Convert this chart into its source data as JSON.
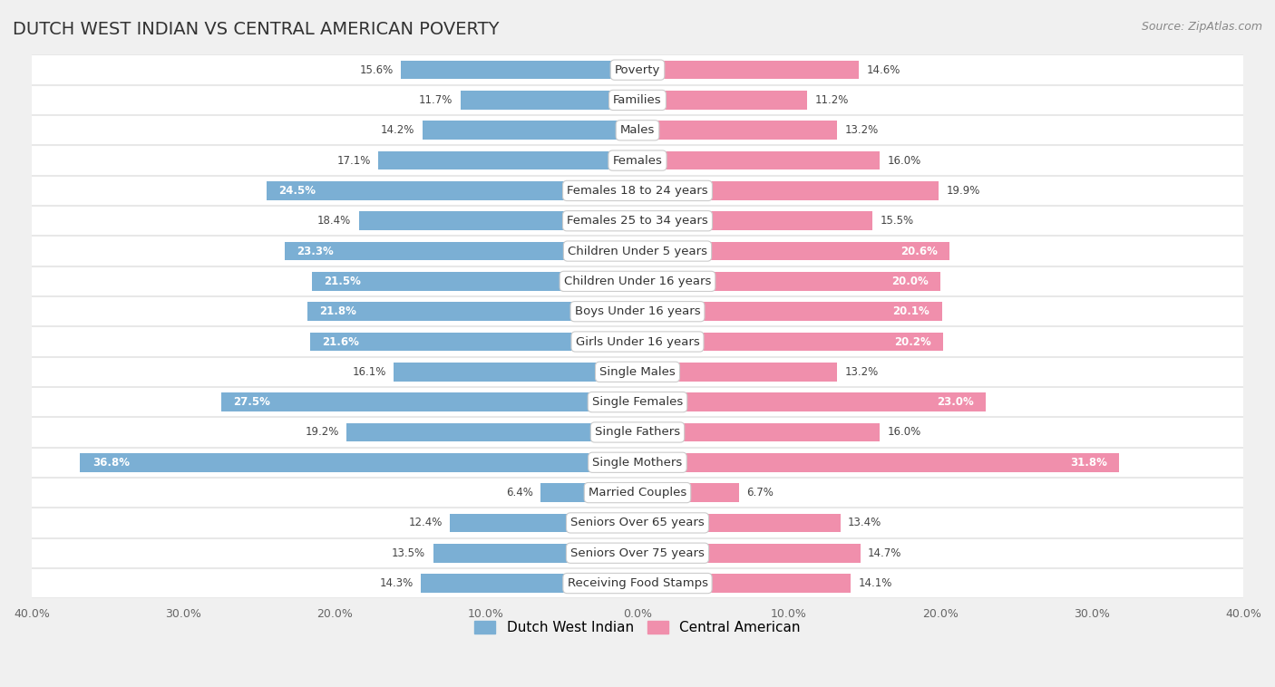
{
  "title": "DUTCH WEST INDIAN VS CENTRAL AMERICAN POVERTY",
  "source_text": "Source: ZipAtlas.com",
  "categories": [
    "Poverty",
    "Families",
    "Males",
    "Females",
    "Females 18 to 24 years",
    "Females 25 to 34 years",
    "Children Under 5 years",
    "Children Under 16 years",
    "Boys Under 16 years",
    "Girls Under 16 years",
    "Single Males",
    "Single Females",
    "Single Fathers",
    "Single Mothers",
    "Married Couples",
    "Seniors Over 65 years",
    "Seniors Over 75 years",
    "Receiving Food Stamps"
  ],
  "dutch_west_indian": [
    15.6,
    11.7,
    14.2,
    17.1,
    24.5,
    18.4,
    23.3,
    21.5,
    21.8,
    21.6,
    16.1,
    27.5,
    19.2,
    36.8,
    6.4,
    12.4,
    13.5,
    14.3
  ],
  "central_american": [
    14.6,
    11.2,
    13.2,
    16.0,
    19.9,
    15.5,
    20.6,
    20.0,
    20.1,
    20.2,
    13.2,
    23.0,
    16.0,
    31.8,
    6.7,
    13.4,
    14.7,
    14.1
  ],
  "dutch_color": "#7bafd4",
  "central_color": "#f08fac",
  "dutch_label": "Dutch West Indian",
  "central_label": "Central American",
  "xlim": 40.0,
  "background_color": "#f0f0f0",
  "row_bg_white": "#ffffff",
  "row_bg_gray": "#e8e8e8",
  "title_fontsize": 14,
  "source_fontsize": 9,
  "label_fontsize": 9.5,
  "value_fontsize": 8.5,
  "legend_fontsize": 11,
  "bar_height": 0.62,
  "white_label_threshold": 20.0
}
